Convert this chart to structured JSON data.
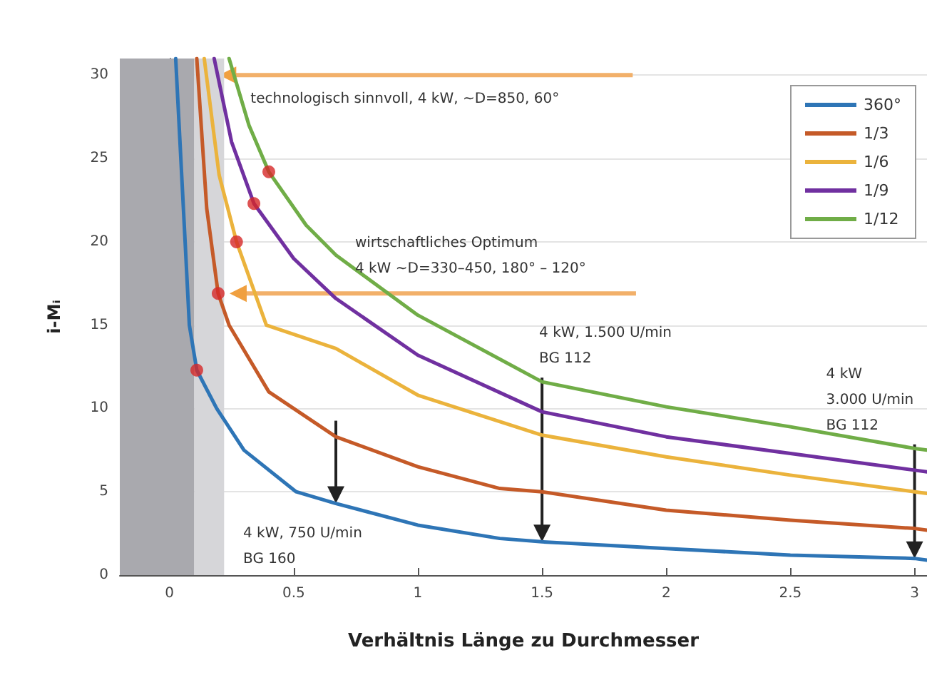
{
  "chart_data": {
    "type": "line",
    "xlabel": "Verhältnis Länge zu Durchmesser",
    "ylabel": "i-Mᵢ",
    "xlim": [
      -0.2,
      3.05
    ],
    "ylim": [
      0,
      31
    ],
    "xticks": [
      0,
      0.5,
      1,
      1.5,
      2,
      2.5,
      3
    ],
    "yticks": [
      0,
      5,
      10,
      15,
      20,
      25,
      30
    ],
    "grid": "y",
    "legend": "top right",
    "marker": "none",
    "line_style": "solid",
    "series": [
      {
        "name": "360°",
        "color": "#2e75b6",
        "x": [
          0.025,
          0.063,
          0.08,
          0.11,
          0.19,
          0.3,
          0.51,
          0.67,
          1.0,
          1.33,
          1.5,
          2.0,
          2.5,
          3.0,
          3.05
        ],
        "values": [
          31,
          20,
          15,
          12.3,
          10,
          7.5,
          5,
          4.3,
          3.0,
          2.2,
          2.0,
          1.6,
          1.2,
          1.0,
          0.9
        ]
      },
      {
        "name": "1/3",
        "color": "#c55a28",
        "x": [
          0.11,
          0.15,
          0.196,
          0.24,
          0.4,
          0.67,
          1.0,
          1.33,
          1.5,
          2.0,
          2.5,
          3.0,
          3.05
        ],
        "values": [
          31,
          22,
          16.9,
          15,
          11,
          8.3,
          6.5,
          5.2,
          5.0,
          3.9,
          3.3,
          2.8,
          2.7
        ]
      },
      {
        "name": "1/6",
        "color": "#ebb33c",
        "x": [
          0.14,
          0.2,
          0.27,
          0.39,
          0.67,
          1.0,
          1.5,
          2.0,
          2.5,
          3.0,
          3.05
        ],
        "values": [
          31,
          24,
          20,
          15,
          13.6,
          10.8,
          8.4,
          7.1,
          6.0,
          5.0,
          4.9
        ]
      },
      {
        "name": "1/9",
        "color": "#7030a0",
        "x": [
          0.18,
          0.25,
          0.34,
          0.5,
          0.67,
          1.0,
          1.5,
          2.0,
          2.5,
          3.0,
          3.05
        ],
        "values": [
          31,
          26,
          22.3,
          19,
          16.6,
          13.2,
          9.8,
          8.3,
          7.3,
          6.3,
          6.2
        ]
      },
      {
        "name": "1/12",
        "color": "#70ad47",
        "x": [
          0.24,
          0.32,
          0.4,
          0.55,
          0.67,
          1.0,
          1.5,
          2.0,
          2.5,
          3.0,
          3.05
        ],
        "values": [
          31,
          27,
          24.2,
          21,
          19.2,
          15.6,
          11.6,
          10.1,
          8.9,
          7.6,
          7.5
        ]
      },
      {
        "type": "scatter",
        "marker": "circle",
        "color": "#d62828",
        "x": [
          0.11,
          0.196,
          0.27,
          0.34,
          0.4
        ],
        "values": [
          12.3,
          16.9,
          20,
          22.3,
          24.2
        ]
      }
    ],
    "bands": [
      {
        "axis": "x",
        "from": -0.2,
        "to": 0.1,
        "color": "#a9a9ae"
      },
      {
        "axis": "x",
        "from": 0.1,
        "to": 0.22,
        "color": "#d6d6d9"
      }
    ],
    "annotations": [
      {
        "text": "technologisch sinnvoll, 4 kW, ~D=850, 60°",
        "x": 0.2,
        "y": 30
      },
      "wirtschaftliches Optimum\n4 kW ~D=330–450, 180° – 120°",
      {
        "text": "4 kW, 750 U/min\nBG 160",
        "x": 0.67,
        "y": 4.3
      },
      {
        "text": "4 kW, 1.500 U/min\nBG 112",
        "x": 1.5,
        "y": 2.0
      },
      {
        "text": "4 kW\n3.000 U/min\nBG 112",
        "x": 3.0,
        "y": 1.0
      }
    ]
  }
}
